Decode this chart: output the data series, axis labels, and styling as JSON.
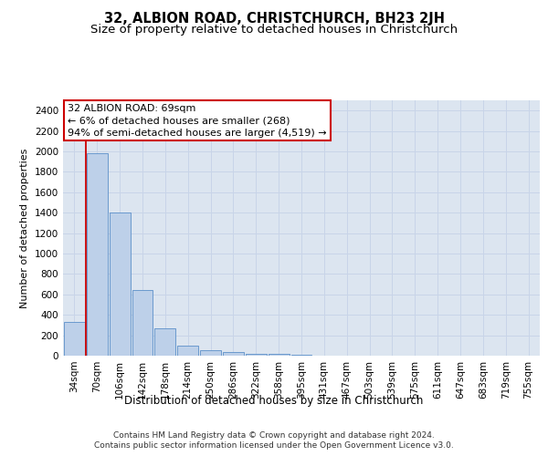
{
  "title": "32, ALBION ROAD, CHRISTCHURCH, BH23 2JH",
  "subtitle": "Size of property relative to detached houses in Christchurch",
  "xlabel": "Distribution of detached houses by size in Christchurch",
  "ylabel": "Number of detached properties",
  "categories": [
    "34sqm",
    "70sqm",
    "106sqm",
    "142sqm",
    "178sqm",
    "214sqm",
    "250sqm",
    "286sqm",
    "322sqm",
    "358sqm",
    "395sqm",
    "431sqm",
    "467sqm",
    "503sqm",
    "539sqm",
    "575sqm",
    "611sqm",
    "647sqm",
    "683sqm",
    "719sqm",
    "755sqm"
  ],
  "bar_values": [
    330,
    1980,
    1400,
    640,
    265,
    100,
    50,
    35,
    22,
    15,
    8,
    0,
    0,
    0,
    0,
    0,
    0,
    0,
    0,
    0,
    0
  ],
  "bar_color": "#bdd0e9",
  "bar_edge_color": "#5b8fc9",
  "grid_color": "#c8d4e8",
  "background_color": "#dce5f0",
  "annotation_text": "32 ALBION ROAD: 69sqm\n← 6% of detached houses are smaller (268)\n94% of semi-detached houses are larger (4,519) →",
  "annotation_box_color": "#ffffff",
  "annotation_box_edge": "#cc0000",
  "vline_color": "#cc0000",
  "ylim": [
    0,
    2500
  ],
  "yticks": [
    0,
    200,
    400,
    600,
    800,
    1000,
    1200,
    1400,
    1600,
    1800,
    2000,
    2200,
    2400
  ],
  "footer_line1": "Contains HM Land Registry data © Crown copyright and database right 2024.",
  "footer_line2": "Contains public sector information licensed under the Open Government Licence v3.0.",
  "title_fontsize": 10.5,
  "subtitle_fontsize": 9.5,
  "xlabel_fontsize": 8.5,
  "ylabel_fontsize": 8,
  "tick_fontsize": 7.5,
  "annotation_fontsize": 8,
  "footer_fontsize": 6.5
}
